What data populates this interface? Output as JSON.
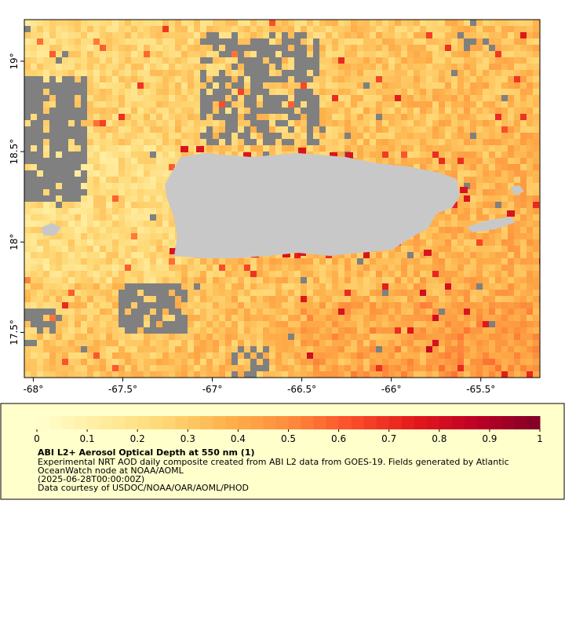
{
  "map": {
    "xlim": [
      -68.05,
      -65.17
    ],
    "ylim": [
      17.25,
      19.23
    ],
    "lon_ticks": [
      {
        "value": -68,
        "label": "-68°"
      },
      {
        "value": -67.5,
        "label": "-67.5°"
      },
      {
        "value": -67,
        "label": "-67°"
      },
      {
        "value": -66.5,
        "label": "-66.5°"
      },
      {
        "value": -66,
        "label": "-66°"
      },
      {
        "value": -65.5,
        "label": "-65.5°"
      }
    ],
    "lat_ticks": [
      {
        "value": 19,
        "label": "19°"
      },
      {
        "value": 18.5,
        "label": "18.5°"
      },
      {
        "value": 18,
        "label": "18°"
      },
      {
        "value": 17.5,
        "label": "17.5°"
      }
    ]
  },
  "colorbar": {
    "lim": [
      0,
      1
    ],
    "ticks": [
      0,
      0.1,
      0.2,
      0.3,
      0.4,
      0.5,
      0.6,
      0.7,
      0.8,
      0.9,
      1
    ],
    "colors": [
      "#ffffcc",
      "#ffeda0",
      "#fed976",
      "#feb24c",
      "#fd8d3c",
      "#fc4e2a",
      "#e31a1c",
      "#bd0026",
      "#800026"
    ]
  },
  "legend": {
    "title": "ABI L2+ Aerosol Optical Depth at 550 nm (1)",
    "lines": [
      "Experimental NRT AOD daily composite created from ABI L2 data from GOES-19. Fields generated by Atlantic",
      "OceanWatch node at NOAA/AOML",
      "(2025-06-28T00:00:00Z)",
      "Data courtesy of USDOC/NOAA/OAR/AOML/PHOD"
    ]
  }
}
